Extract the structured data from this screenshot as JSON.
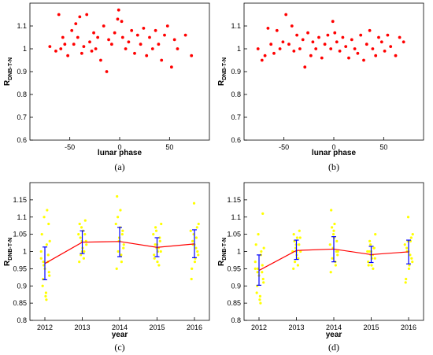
{
  "chart_data": [
    {
      "type": "scatter",
      "panel_label": "(a)",
      "xlabel": "lunar phase",
      "ylabel_main": "R",
      "ylabel_sub": "DNB-T-N",
      "xlim": [
        -90,
        90
      ],
      "ylim": [
        0.6,
        1.2
      ],
      "xticks": [
        -50,
        0,
        50
      ],
      "yticks": [
        0.6,
        0.7,
        0.8,
        0.9,
        1,
        1.1
      ],
      "color": "#ff0000",
      "x": [
        -70,
        -64,
        -61,
        -59,
        -57,
        -55,
        -52,
        -48,
        -46,
        -44,
        -42,
        -40,
        -38,
        -36,
        -33,
        -30,
        -28,
        -26,
        -24,
        -22,
        -19,
        -16,
        -13,
        -11,
        -8,
        -5,
        -2,
        -1,
        2,
        3,
        6,
        9,
        12,
        15,
        18,
        21,
        24,
        27,
        30,
        33,
        36,
        39,
        42,
        45,
        48,
        52,
        55,
        58,
        66,
        72
      ],
      "y": [
        1.01,
        0.99,
        1.15,
        1.0,
        1.05,
        1.02,
        0.97,
        1.08,
        1.02,
        1.11,
        1.05,
        1.14,
        0.98,
        1.01,
        1.15,
        1.03,
        0.99,
        1.07,
        1.0,
        1.05,
        0.95,
        1.1,
        0.9,
        1.04,
        1.02,
        1.07,
        1.13,
        1.17,
        1.12,
        1.05,
        1.0,
        1.03,
        1.08,
        0.98,
        1.06,
        1.02,
        1.09,
        0.97,
        1.05,
        1.0,
        1.08,
        1.02,
        0.95,
        1.06,
        1.1,
        0.92,
        1.04,
        1.0,
        1.06,
        0.97
      ]
    },
    {
      "type": "scatter",
      "panel_label": "(b)",
      "xlabel": "lunar phase",
      "ylabel_main": "R",
      "ylabel_sub": "DNB-T-N",
      "xlim": [
        -90,
        90
      ],
      "ylim": [
        0.6,
        1.2
      ],
      "xticks": [
        -50,
        0,
        50
      ],
      "yticks": [
        0.6,
        0.7,
        0.8,
        0.9,
        1,
        1.1
      ],
      "color": "#ff0000",
      "x": [
        -76,
        -72,
        -69,
        -66,
        -63,
        -60,
        -57,
        -54,
        -51,
        -48,
        -45,
        -42,
        -40,
        -37,
        -34,
        -31,
        -29,
        -26,
        -23,
        -21,
        -18,
        -15,
        -12,
        -9,
        -6,
        -3,
        -1,
        1,
        3,
        6,
        9,
        12,
        15,
        18,
        21,
        24,
        27,
        30,
        33,
        36,
        39,
        42,
        45,
        48,
        51,
        54,
        57,
        62,
        66,
        70
      ],
      "y": [
        1.0,
        0.95,
        0.97,
        1.09,
        1.02,
        0.98,
        1.08,
        1.0,
        1.03,
        1.15,
        1.02,
        1.1,
        0.99,
        1.06,
        1.0,
        1.04,
        0.92,
        1.07,
        0.97,
        1.03,
        1.0,
        1.05,
        0.96,
        1.02,
        1.06,
        1.0,
        1.12,
        1.07,
        1.03,
        0.99,
        1.05,
        1.01,
        0.96,
        1.04,
        1.0,
        0.98,
        1.06,
        0.95,
        1.02,
        1.08,
        1.0,
        0.97,
        1.05,
        1.03,
        0.99,
        1.06,
        1.01,
        0.97,
        1.05,
        1.03
      ]
    },
    {
      "type": "scatter",
      "panel_label": "(c)",
      "xlabel": "year",
      "ylabel_main": "R",
      "ylabel_sub": "DNB-T-N",
      "xlim": [
        2011.6,
        2016.4
      ],
      "ylim": [
        0.8,
        1.2
      ],
      "categories": [
        "2012",
        "2013",
        "2014",
        "2015",
        "2016"
      ],
      "yticks": [
        0.8,
        0.85,
        0.9,
        0.95,
        1,
        1.05,
        1.1,
        1.15
      ],
      "color": "#ffff00",
      "line_color": "#ff0000",
      "errorbar_color": "#0000ff",
      "x": [
        2011.9,
        2011.92,
        2011.95,
        2011.98,
        2012.0,
        2012.02,
        2012.05,
        2012.08,
        2012.1,
        2012.12,
        2011.9,
        2011.94,
        2011.97,
        2012.03,
        2012.06,
        2012.09,
        2012.11,
        2012.13,
        2012.04,
        2011.96,
        2012.9,
        2012.93,
        2012.96,
        2012.99,
        2013.02,
        2013.05,
        2013.08,
        2013.11,
        2012.92,
        2012.95,
        2012.98,
        2013.01,
        2013.04,
        2013.07,
        2013.1,
        2013.0,
        2013.9,
        2013.93,
        2013.96,
        2013.99,
        2014.02,
        2014.05,
        2014.08,
        2014.11,
        2013.92,
        2013.95,
        2013.98,
        2014.01,
        2014.04,
        2014.07,
        2014.1,
        2014.0,
        2014.9,
        2014.93,
        2014.96,
        2014.99,
        2015.02,
        2015.05,
        2015.08,
        2015.11,
        2014.92,
        2014.95,
        2014.98,
        2015.01,
        2015.04,
        2015.07,
        2015.1,
        2015.0,
        2015.9,
        2015.93,
        2015.96,
        2015.99,
        2016.02,
        2016.05,
        2016.08,
        2016.11,
        2015.92,
        2015.95,
        2015.98,
        2016.01,
        2016.04,
        2016.07,
        2016.1,
        2016.0
      ],
      "y": [
        0.98,
        1.05,
        0.92,
        1.1,
        0.95,
        0.87,
        1.02,
        0.97,
        1.08,
        0.93,
        1.0,
        0.9,
        0.96,
        0.88,
        1.12,
        0.99,
        0.94,
        1.03,
        0.86,
        0.97,
        1.05,
        1.08,
        0.99,
        1.03,
        1.06,
        1.0,
        1.09,
        1.02,
        0.97,
        1.04,
        1.07,
        1.01,
        0.98,
        1.05,
        1.03,
        1.0,
        1.08,
        1.16,
        1.0,
        1.04,
        1.12,
        0.97,
        1.06,
        1.02,
        0.95,
        1.1,
        1.03,
        1.07,
        0.99,
        1.05,
        1.01,
        1.03,
        1.05,
        0.98,
        1.07,
        1.01,
        1.0,
        0.96,
        1.03,
        1.08,
        0.99,
        1.02,
        1.06,
        0.97,
        1.01,
        1.04,
        1.0,
        1.02,
        1.06,
        0.95,
        1.02,
        1.14,
        0.98,
        1.04,
        1.0,
        1.08,
        0.92,
        1.03,
        1.05,
        0.97,
        1.01,
        1.07,
        0.99,
        1.02
      ],
      "mean_line": [
        0.965,
        1.027,
        1.029,
        1.012,
        1.022
      ],
      "error_low": [
        0.918,
        0.994,
        0.985,
        0.985,
        0.982
      ],
      "error_high": [
        1.013,
        1.06,
        1.07,
        1.04,
        1.063
      ]
    },
    {
      "type": "scatter",
      "panel_label": "(d)",
      "xlabel": "year",
      "ylabel_main": "R",
      "ylabel_sub": "DNB-T-N",
      "xlim": [
        2011.6,
        2016.4
      ],
      "ylim": [
        0.8,
        1.2
      ],
      "categories": [
        "2012",
        "2013",
        "2014",
        "2015",
        "2016"
      ],
      "yticks": [
        0.8,
        0.85,
        0.9,
        0.95,
        1,
        1.05,
        1.1,
        1.15
      ],
      "color": "#ffff00",
      "line_color": "#ff0000",
      "errorbar_color": "#0000ff",
      "x": [
        2011.9,
        2011.92,
        2011.95,
        2011.98,
        2012.0,
        2012.02,
        2012.05,
        2012.08,
        2012.1,
        2012.12,
        2011.9,
        2011.94,
        2011.97,
        2012.03,
        2012.06,
        2012.09,
        2012.11,
        2012.13,
        2012.04,
        2011.96,
        2012.9,
        2012.93,
        2012.96,
        2012.99,
        2013.02,
        2013.05,
        2013.08,
        2013.11,
        2012.92,
        2012.95,
        2012.98,
        2013.01,
        2013.04,
        2013.07,
        2013.1,
        2013.0,
        2013.9,
        2013.93,
        2013.96,
        2013.99,
        2014.02,
        2014.05,
        2014.08,
        2014.11,
        2013.92,
        2013.95,
        2013.98,
        2014.01,
        2014.04,
        2014.07,
        2014.1,
        2014.0,
        2014.9,
        2014.93,
        2014.96,
        2014.99,
        2015.02,
        2015.05,
        2015.08,
        2015.11,
        2014.92,
        2014.95,
        2014.98,
        2015.01,
        2015.04,
        2015.07,
        2015.1,
        2015.0,
        2015.9,
        2015.93,
        2015.96,
        2015.99,
        2016.02,
        2016.05,
        2016.08,
        2016.11,
        2015.92,
        2015.95,
        2015.98,
        2016.01,
        2016.04,
        2016.07,
        2016.1,
        2016.0
      ],
      "y": [
        0.95,
        1.02,
        0.9,
        1.05,
        0.93,
        0.86,
        0.99,
        0.94,
        1.11,
        0.91,
        0.97,
        0.88,
        0.95,
        0.87,
        1.0,
        0.96,
        0.92,
        1.01,
        0.85,
        0.94,
        1.0,
        1.05,
        0.97,
        1.02,
        1.04,
        0.98,
        1.06,
        1.0,
        0.95,
        1.03,
        1.01,
        0.99,
        0.96,
        1.02,
        1.04,
        1.0,
        1.02,
        1.12,
        0.98,
        1.05,
        1.08,
        0.96,
        1.03,
        1.0,
        0.94,
        1.07,
        1.01,
        1.04,
        0.97,
        1.0,
        0.99,
        1.06,
        1.0,
        0.96,
        1.03,
        0.99,
        0.98,
        0.95,
        1.01,
        1.05,
        0.97,
        1.0,
        1.02,
        0.96,
        0.99,
        1.01,
        0.98,
        1.0,
        1.02,
        0.92,
        1.0,
        1.1,
        0.96,
        1.03,
        0.98,
        1.05,
        0.91,
        1.01,
        1.03,
        0.95,
        0.99,
        1.04,
        0.97,
        1.0
      ],
      "mean_line": [
        0.945,
        1.003,
        1.007,
        0.991,
        0.999
      ],
      "error_low": [
        0.902,
        0.977,
        0.97,
        0.968,
        0.964
      ],
      "error_high": [
        0.99,
        1.033,
        1.043,
        1.015,
        1.033
      ]
    }
  ]
}
